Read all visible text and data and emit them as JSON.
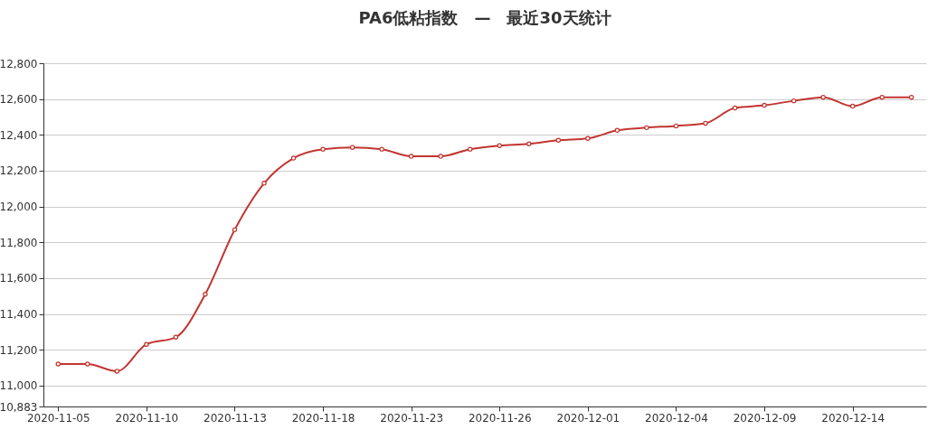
{
  "chart_data": {
    "type": "line",
    "title": "PA6低粘指数　—　最近30天统计",
    "categories": [
      "2020-11-05",
      null,
      null,
      "2020-11-10",
      null,
      null,
      "2020-11-13",
      null,
      null,
      "2020-11-18",
      null,
      null,
      "2020-11-23",
      null,
      null,
      "2020-11-26",
      null,
      null,
      "2020-12-01",
      null,
      null,
      "2020-12-04",
      null,
      null,
      "2020-12-09",
      null,
      null,
      "2020-12-14",
      null,
      null
    ],
    "series": [
      {
        "color": "#c23531",
        "values": [
          11120,
          11120,
          11080,
          11230,
          11270,
          11510,
          11870,
          12130,
          12270,
          12320,
          12330,
          12320,
          12280,
          12280,
          12320,
          12340,
          12350,
          12370,
          12380,
          12425,
          12440,
          12450,
          12465,
          12550,
          12565,
          12590,
          12610,
          12560,
          12610,
          12610
        ]
      }
    ],
    "ylim": [
      10883,
      12800
    ],
    "yticks": [
      {
        "value": 10883,
        "label": "10,883"
      },
      {
        "value": 11000,
        "label": "11,000"
      },
      {
        "value": 11200,
        "label": "11,200"
      },
      {
        "value": 11400,
        "label": "11,400"
      },
      {
        "value": 11600,
        "label": "11,600"
      },
      {
        "value": 11800,
        "label": "11,800"
      },
      {
        "value": 12000,
        "label": "12,000"
      },
      {
        "value": 12200,
        "label": "12,200"
      },
      {
        "value": 12400,
        "label": "12,400"
      },
      {
        "value": 12600,
        "label": "12,600"
      },
      {
        "value": 12800,
        "label": "12,800"
      }
    ],
    "grid": "y",
    "marker": "circle",
    "line_style": "solid"
  }
}
